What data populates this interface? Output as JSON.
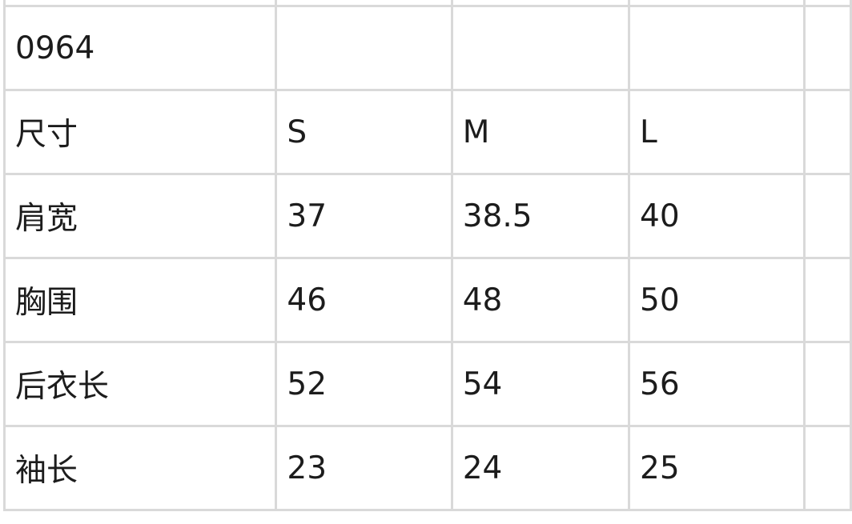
{
  "table": {
    "title": "0964",
    "header": [
      "尺寸",
      "S",
      "M",
      "L"
    ],
    "rows": [
      [
        "肩宽",
        "37",
        "38.5",
        "40"
      ],
      [
        "胸围",
        "46",
        "48",
        "50"
      ],
      [
        "后衣长",
        "52",
        "54",
        "56"
      ],
      [
        "袖长",
        "23",
        "24",
        "25"
      ]
    ]
  }
}
